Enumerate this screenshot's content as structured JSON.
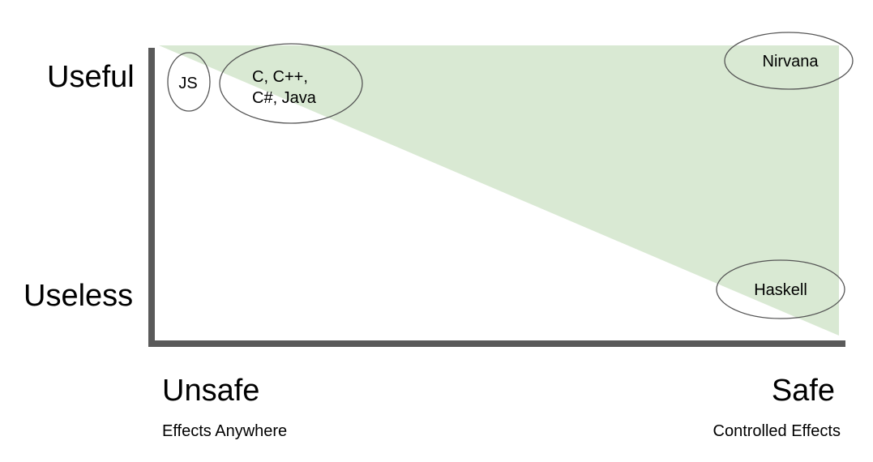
{
  "y_axis": {
    "top_label": "Useful",
    "bottom_label": "Useless"
  },
  "x_axis": {
    "left_label": "Unsafe",
    "left_sublabel": "Effects Anywhere",
    "right_label": "Safe",
    "right_sublabel": "Controlled Effects"
  },
  "nodes": [
    {
      "name": "js",
      "lines": [
        "JS"
      ]
    },
    {
      "name": "c-family",
      "lines": [
        "C, C++,",
        "C#, Java"
      ]
    },
    {
      "name": "nirvana",
      "lines": [
        "Nirvana"
      ]
    },
    {
      "name": "haskell",
      "lines": [
        "Haskell"
      ]
    }
  ],
  "colors": {
    "region_fill": "#d9e9d3",
    "axis": "#5a5a5a",
    "ellipse_stroke": "#555555"
  }
}
